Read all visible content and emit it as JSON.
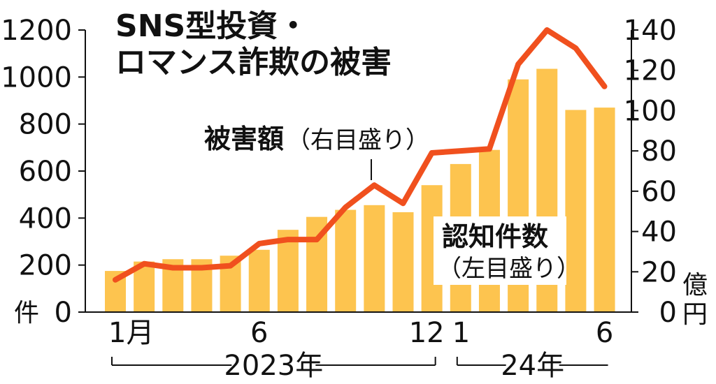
{
  "chart_data": {
    "type": "bar+line",
    "title_lines": [
      "SNS型投資・",
      "ロマンス詐欺の被害"
    ],
    "months": [
      "2023-01",
      "2023-02",
      "2023-03",
      "2023-04",
      "2023-05",
      "2023-06",
      "2023-07",
      "2023-08",
      "2023-09",
      "2023-10",
      "2023-11",
      "2023-12",
      "2024-01",
      "2024-02",
      "2024-03",
      "2024-04",
      "2024-05",
      "2024-06"
    ],
    "x_tick_labels": [
      {
        "index": 0,
        "label": "1月"
      },
      {
        "index": 5,
        "label": "6"
      },
      {
        "index": 11,
        "label": "12"
      },
      {
        "index": 12,
        "label": "1"
      },
      {
        "index": 17,
        "label": "6"
      }
    ],
    "year_labels": [
      {
        "label": "2023年",
        "from_index": 0,
        "to_index": 11
      },
      {
        "label": "24年",
        "from_index": 12,
        "to_index": 17
      }
    ],
    "series": [
      {
        "name": "認知件数",
        "axis": "left",
        "type": "bar",
        "color": "#FDC44F",
        "values": [
          175,
          215,
          225,
          225,
          240,
          265,
          350,
          405,
          435,
          455,
          425,
          540,
          630,
          690,
          990,
          1035,
          860,
          870
        ]
      },
      {
        "name": "被害額",
        "axis": "right",
        "type": "line",
        "color": "#F0501E",
        "values": [
          16,
          24,
          22,
          22,
          23,
          34,
          36,
          36,
          52,
          63,
          54,
          79,
          80,
          81,
          123,
          140,
          131,
          112
        ]
      }
    ],
    "left_axis": {
      "ylim": [
        0,
        1200
      ],
      "ticks": [
        0,
        200,
        400,
        600,
        800,
        1000,
        1200
      ],
      "unit": "件"
    },
    "right_axis": {
      "ylim": [
        0,
        140
      ],
      "ticks": [
        0,
        20,
        40,
        60,
        80,
        100,
        120,
        140
      ],
      "unit_lines": [
        "億",
        "円"
      ]
    },
    "annotations": {
      "line_label": {
        "bold": "被害額",
        "note": "（右目盛り）"
      },
      "bar_label": {
        "bold": "認知件数",
        "note": "（左目盛り）"
      }
    },
    "grid": false
  }
}
